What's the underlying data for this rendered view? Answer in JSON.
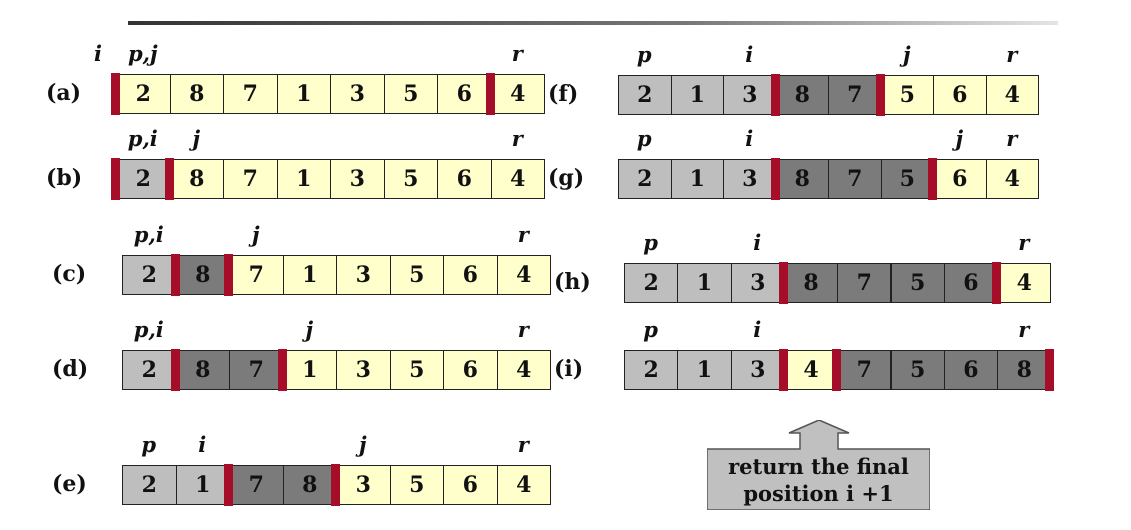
{
  "rows": [
    {
      "label": "(a)",
      "values": [
        "2",
        "8",
        "7",
        "1",
        "3",
        "5",
        "6",
        "4"
      ],
      "colors": [
        "y",
        "y",
        "y",
        "y",
        "y",
        "y",
        "y",
        "y"
      ],
      "bars": [
        0,
        7
      ],
      "pointers": [
        {
          "text": "i",
          "pos": -1
        },
        {
          "text": "p,j",
          "pos": 0
        },
        {
          "text": "r",
          "pos": 7
        }
      ]
    },
    {
      "label": "(b)",
      "values": [
        "2",
        "8",
        "7",
        "1",
        "3",
        "5",
        "6",
        "4"
      ],
      "colors": [
        "l",
        "y",
        "y",
        "y",
        "y",
        "y",
        "y",
        "y"
      ],
      "bars": [
        0,
        1
      ],
      "pointers": [
        {
          "text": "p,i",
          "pos": 0
        },
        {
          "text": "j",
          "pos": 1
        },
        {
          "text": "r",
          "pos": 7
        }
      ]
    },
    {
      "label": "(c)",
      "values": [
        "2",
        "8",
        "7",
        "1",
        "3",
        "5",
        "6",
        "4"
      ],
      "colors": [
        "l",
        "d",
        "y",
        "y",
        "y",
        "y",
        "y",
        "y"
      ],
      "bars": [
        1,
        2
      ],
      "pointers": [
        {
          "text": "p,i",
          "pos": 0
        },
        {
          "text": "j",
          "pos": 2
        },
        {
          "text": "r",
          "pos": 7
        }
      ]
    },
    {
      "label": "(d)",
      "values": [
        "2",
        "8",
        "7",
        "1",
        "3",
        "5",
        "6",
        "4"
      ],
      "colors": [
        "l",
        "d",
        "d",
        "y",
        "y",
        "y",
        "y",
        "y"
      ],
      "bars": [
        1,
        3
      ],
      "pointers": [
        {
          "text": "p,i",
          "pos": 0
        },
        {
          "text": "j",
          "pos": 3
        },
        {
          "text": "r",
          "pos": 7
        }
      ]
    },
    {
      "label": "(e)",
      "values": [
        "2",
        "1",
        "7",
        "8",
        "3",
        "5",
        "6",
        "4"
      ],
      "colors": [
        "l",
        "l",
        "d",
        "d",
        "y",
        "y",
        "y",
        "y"
      ],
      "bars": [
        2,
        4
      ],
      "pointers": [
        {
          "text": "p",
          "pos": 0
        },
        {
          "text": "i",
          "pos": 1
        },
        {
          "text": "j",
          "pos": 4
        },
        {
          "text": "r",
          "pos": 7
        }
      ]
    },
    {
      "label": "(f)",
      "values": [
        "2",
        "1",
        "3",
        "8",
        "7",
        "5",
        "6",
        "4"
      ],
      "colors": [
        "l",
        "l",
        "l",
        "d",
        "d",
        "y",
        "y",
        "y"
      ],
      "bars": [
        3,
        5
      ],
      "pointers": [
        {
          "text": "p",
          "pos": 0
        },
        {
          "text": "i",
          "pos": 2
        },
        {
          "text": "j",
          "pos": 5
        },
        {
          "text": "r",
          "pos": 7
        }
      ]
    },
    {
      "label": "(g)",
      "values": [
        "2",
        "1",
        "3",
        "8",
        "7",
        "5",
        "6",
        "4"
      ],
      "colors": [
        "l",
        "l",
        "l",
        "d",
        "d",
        "d",
        "y",
        "y"
      ],
      "bars": [
        3,
        6
      ],
      "pointers": [
        {
          "text": "p",
          "pos": 0
        },
        {
          "text": "i",
          "pos": 2
        },
        {
          "text": "j",
          "pos": 6
        },
        {
          "text": "r",
          "pos": 7
        }
      ]
    },
    {
      "label": "(h)",
      "values": [
        "2",
        "1",
        "3",
        "8",
        "7",
        "5",
        "6",
        "4"
      ],
      "colors": [
        "l",
        "l",
        "l",
        "d",
        "d",
        "d",
        "d",
        "y"
      ],
      "bars": [
        3,
        7
      ],
      "pointers": [
        {
          "text": "p",
          "pos": 0
        },
        {
          "text": "i",
          "pos": 2
        },
        {
          "text": "r",
          "pos": 7
        }
      ]
    },
    {
      "label": "(i)",
      "values": [
        "2",
        "1",
        "3",
        "4",
        "7",
        "5",
        "6",
        "8"
      ],
      "colors": [
        "l",
        "l",
        "l",
        "y",
        "d",
        "d",
        "d",
        "d"
      ],
      "bars": [
        3,
        4,
        8
      ],
      "pointers": [
        {
          "text": "p",
          "pos": 0
        },
        {
          "text": "i",
          "pos": 2
        },
        {
          "text": "r",
          "pos": 7
        }
      ]
    }
  ],
  "callout": {
    "line1": "return the final",
    "line2": "position i +1"
  },
  "colors": {
    "unprocessed": "#ffffcc",
    "le_pivot": "#bebebe",
    "gt_pivot": "#7b7b7b",
    "divider": "#a50d28",
    "callout": "#c0c0c0"
  }
}
